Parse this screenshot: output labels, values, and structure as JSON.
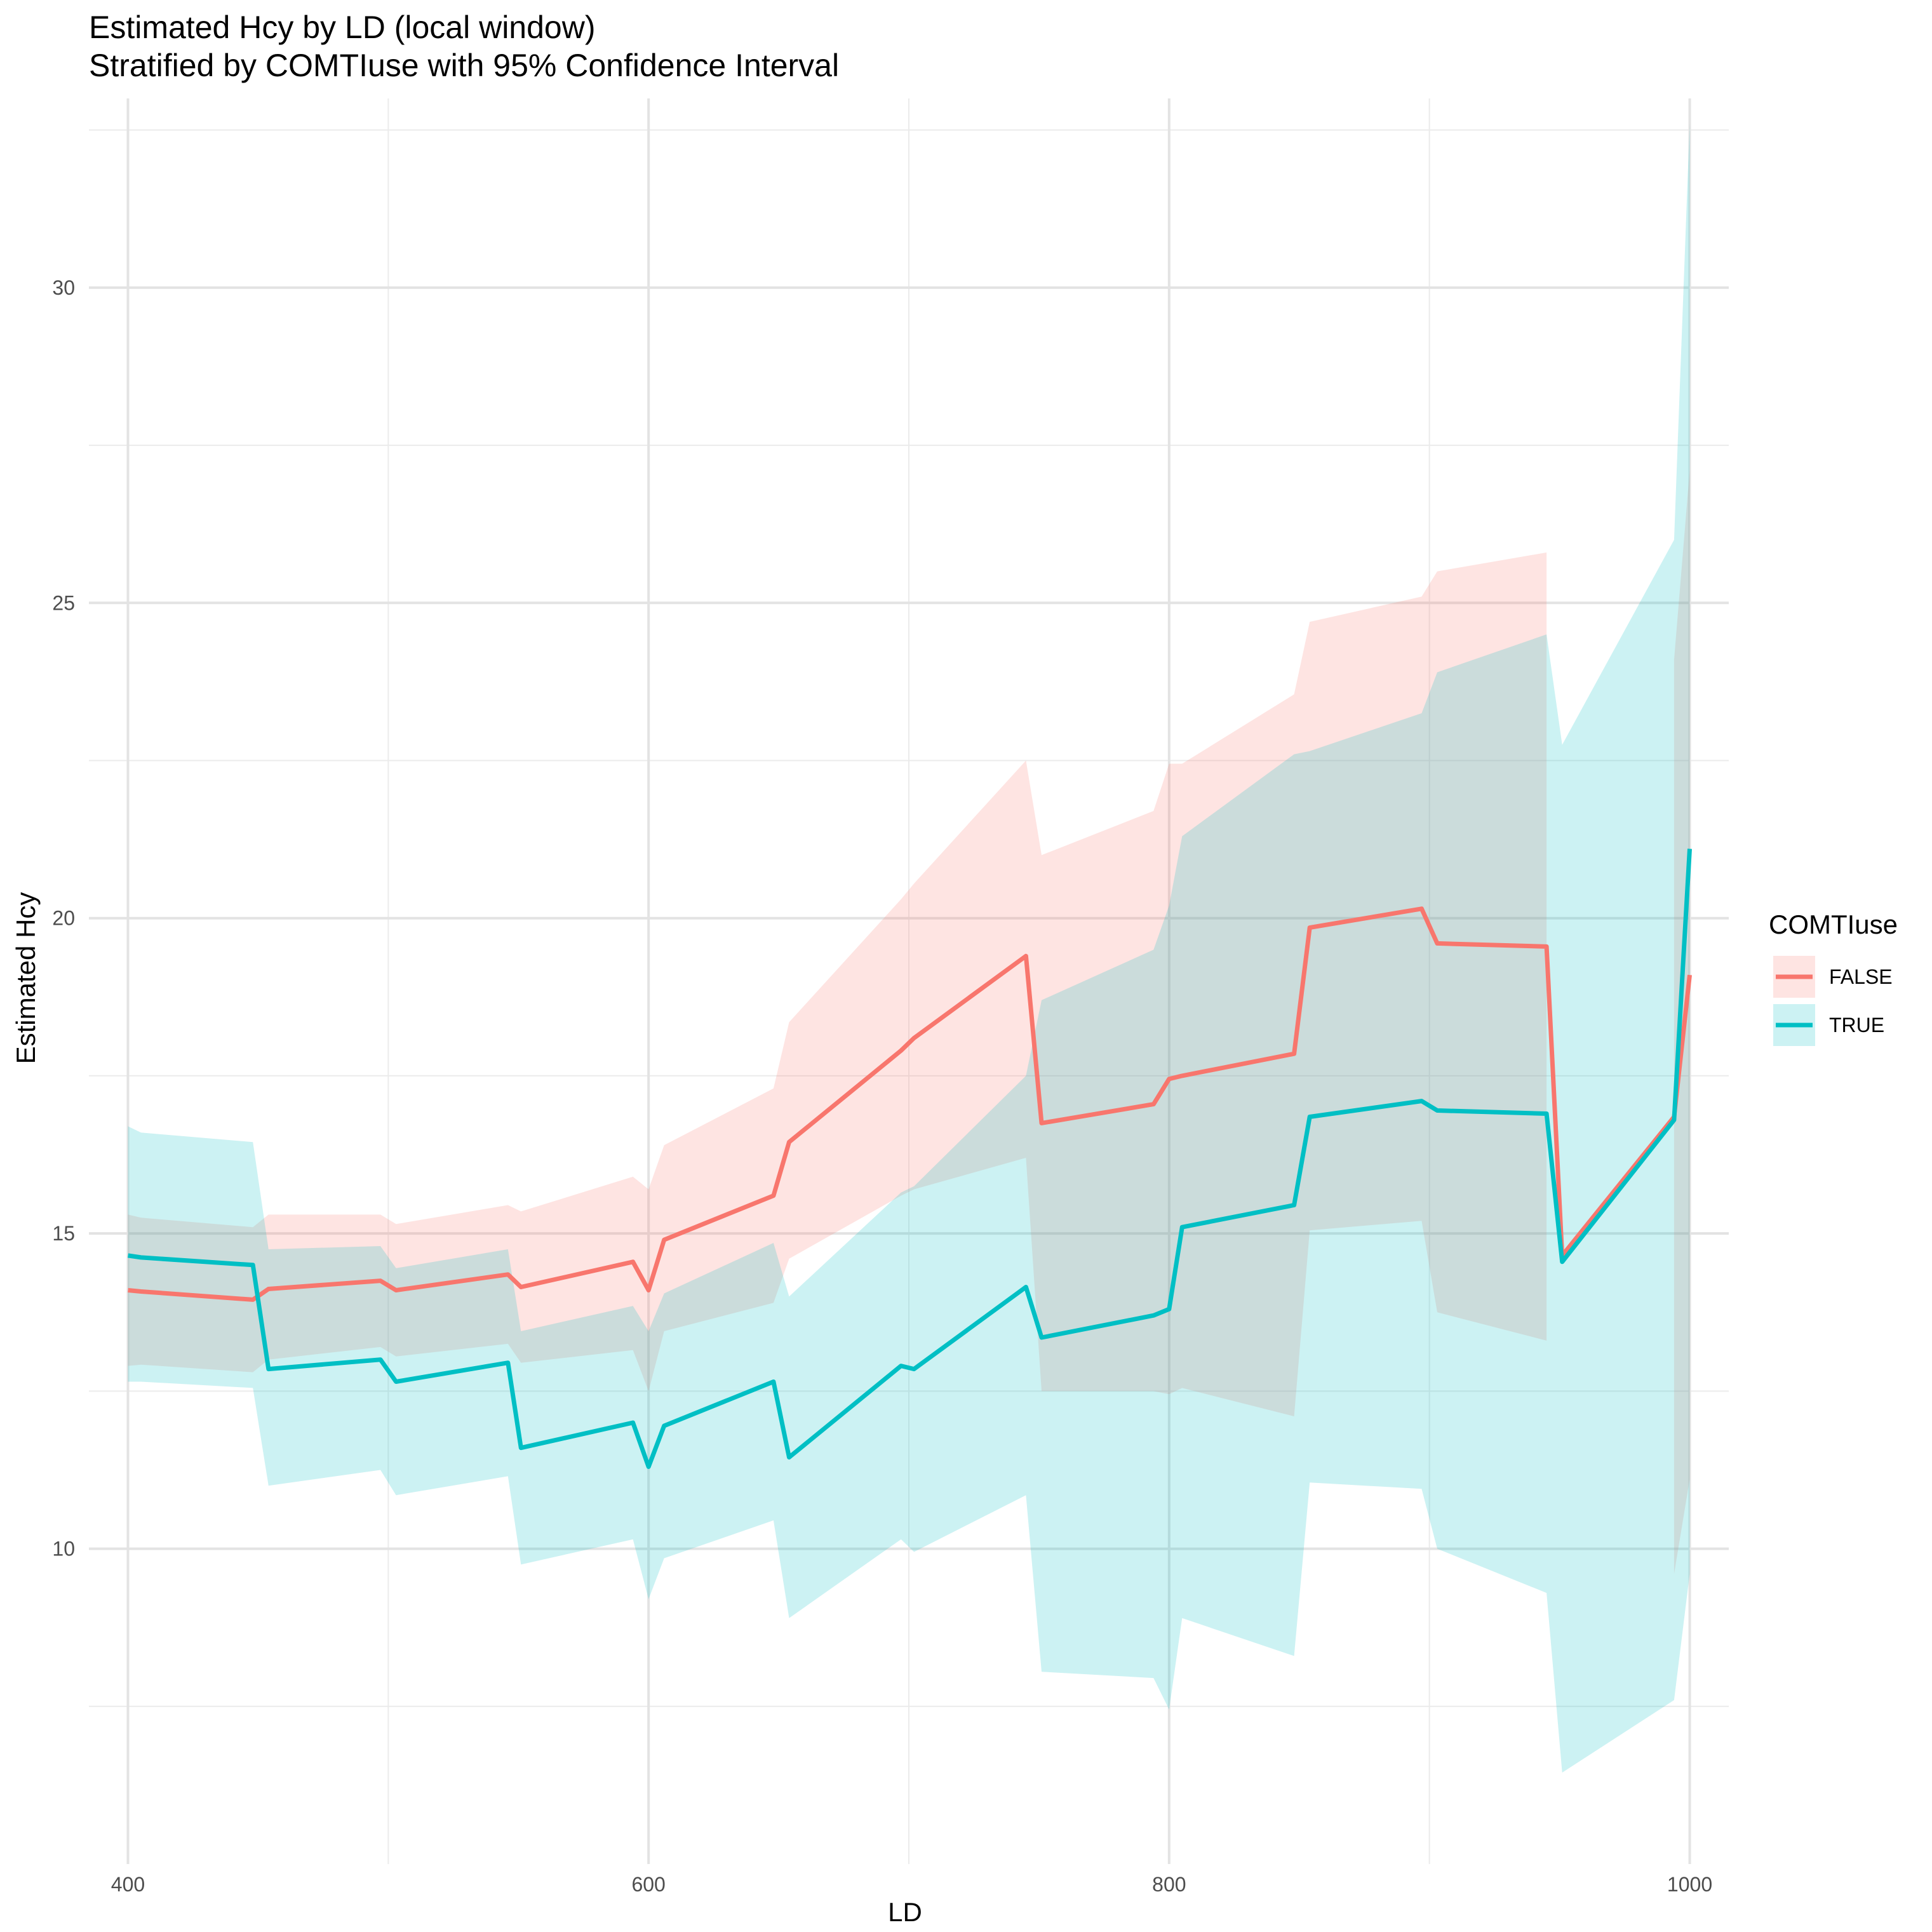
{
  "chart_data": {
    "type": "line",
    "title": "Estimated Hcy by LD (local window)",
    "subtitle": "Stratified by COMTIuse with 95% Confidence Interval",
    "xlabel": "LD",
    "ylabel": "Estimated Hcy",
    "xlim": [
      385,
      1015
    ],
    "ylim": [
      5,
      33
    ],
    "x_ticks": [
      400,
      600,
      800,
      1000
    ],
    "y_ticks": [
      10,
      15,
      20,
      25,
      30
    ],
    "x_minor_ticks": [
      500,
      700,
      900
    ],
    "y_minor_ticks": [
      7.5,
      12.5,
      17.5,
      22.5,
      27.5,
      32.5
    ],
    "grid": true,
    "legend": {
      "title": "COMTIuse",
      "position": "right",
      "entries": [
        "FALSE",
        "TRUE"
      ]
    },
    "series": [
      {
        "name": "FALSE",
        "color": "#F8766D",
        "points": [
          {
            "x": 400,
            "y": 14.1,
            "lo": 12.9,
            "hi": 15.3
          },
          {
            "x": 405,
            "y": 14.08,
            "lo": 12.92,
            "hi": 15.25
          },
          {
            "x": 448,
            "y": 13.95,
            "lo": 12.8,
            "hi": 15.1
          },
          {
            "x": 454,
            "y": 14.12,
            "lo": 13.0,
            "hi": 15.3
          },
          {
            "x": 497,
            "y": 14.25,
            "lo": 13.2,
            "hi": 15.3
          },
          {
            "x": 503,
            "y": 14.1,
            "lo": 13.05,
            "hi": 15.15
          },
          {
            "x": 546,
            "y": 14.35,
            "lo": 13.25,
            "hi": 15.45
          },
          {
            "x": 551,
            "y": 14.15,
            "lo": 12.95,
            "hi": 15.35
          },
          {
            "x": 594,
            "y": 14.55,
            "lo": 13.15,
            "hi": 15.9
          },
          {
            "x": 600,
            "y": 14.1,
            "lo": 12.5,
            "hi": 15.7
          },
          {
            "x": 606,
            "y": 14.9,
            "lo": 13.45,
            "hi": 16.4
          },
          {
            "x": 648,
            "y": 15.6,
            "lo": 13.9,
            "hi": 17.3
          },
          {
            "x": 654,
            "y": 16.45,
            "lo": 14.6,
            "hi": 18.35
          },
          {
            "x": 697,
            "y": 17.9,
            "lo": 15.6,
            "hi": 20.3
          },
          {
            "x": 702,
            "y": 18.1,
            "lo": 15.7,
            "hi": 20.55
          },
          {
            "x": 745,
            "y": 19.4,
            "lo": 16.2,
            "hi": 22.5
          },
          {
            "x": 751,
            "y": 16.75,
            "lo": 12.5,
            "hi": 21.0
          },
          {
            "x": 794,
            "y": 17.05,
            "lo": 12.5,
            "hi": 21.7
          },
          {
            "x": 800,
            "y": 17.45,
            "lo": 12.45,
            "hi": 22.45
          },
          {
            "x": 805,
            "y": 17.5,
            "lo": 12.55,
            "hi": 22.45
          },
          {
            "x": 848,
            "y": 17.85,
            "lo": 12.1,
            "hi": 23.55
          },
          {
            "x": 854,
            "y": 19.85,
            "lo": 15.05,
            "hi": 24.7
          },
          {
            "x": 897,
            "y": 20.15,
            "lo": 15.2,
            "hi": 25.1
          },
          {
            "x": 903,
            "y": 19.6,
            "lo": 13.75,
            "hi": 25.5
          },
          {
            "x": 945,
            "y": 19.55,
            "lo": 13.3,
            "hi": 25.8
          },
          {
            "x": 951,
            "y": 14.65,
            "lo": null,
            "hi": null
          },
          {
            "x": 994,
            "y": 16.85,
            "lo": 9.6,
            "hi": 24.1
          },
          {
            "x": 1000,
            "y": 19.1,
            "lo": 11.1,
            "hi": 27.1
          }
        ]
      },
      {
        "name": "TRUE",
        "color": "#00BFC4",
        "points": [
          {
            "x": 400,
            "y": 14.65,
            "lo": 12.65,
            "hi": 16.7
          },
          {
            "x": 405,
            "y": 14.62,
            "lo": 12.65,
            "hi": 16.6
          },
          {
            "x": 448,
            "y": 14.5,
            "lo": 12.55,
            "hi": 16.45
          },
          {
            "x": 454,
            "y": 12.85,
            "lo": 11.0,
            "hi": 14.75
          },
          {
            "x": 497,
            "y": 13.0,
            "lo": 11.25,
            "hi": 14.8
          },
          {
            "x": 503,
            "y": 12.65,
            "lo": 10.85,
            "hi": 14.45
          },
          {
            "x": 546,
            "y": 12.95,
            "lo": 11.15,
            "hi": 14.75
          },
          {
            "x": 551,
            "y": 11.6,
            "lo": 9.75,
            "hi": 13.45
          },
          {
            "x": 594,
            "y": 12.0,
            "lo": 10.15,
            "hi": 13.85
          },
          {
            "x": 600,
            "y": 11.3,
            "lo": 9.2,
            "hi": 13.45
          },
          {
            "x": 606,
            "y": 11.95,
            "lo": 9.85,
            "hi": 14.05
          },
          {
            "x": 648,
            "y": 12.65,
            "lo": 10.45,
            "hi": 14.85
          },
          {
            "x": 654,
            "y": 11.45,
            "lo": 8.9,
            "hi": 14.0
          },
          {
            "x": 697,
            "y": 12.9,
            "lo": 10.15,
            "hi": 15.65
          },
          {
            "x": 702,
            "y": 12.85,
            "lo": 9.95,
            "hi": 15.75
          },
          {
            "x": 745,
            "y": 14.15,
            "lo": 10.85,
            "hi": 17.5
          },
          {
            "x": 751,
            "y": 13.35,
            "lo": 8.05,
            "hi": 18.7
          },
          {
            "x": 794,
            "y": 13.7,
            "lo": 7.95,
            "hi": 19.5
          },
          {
            "x": 800,
            "y": 13.8,
            "lo": 7.45,
            "hi": 20.2
          },
          {
            "x": 805,
            "y": 15.1,
            "lo": 8.9,
            "hi": 21.3
          },
          {
            "x": 848,
            "y": 15.45,
            "lo": 8.3,
            "hi": 22.6
          },
          {
            "x": 854,
            "y": 16.85,
            "lo": 11.05,
            "hi": 22.65
          },
          {
            "x": 897,
            "y": 17.1,
            "lo": 10.95,
            "hi": 23.25
          },
          {
            "x": 903,
            "y": 16.95,
            "lo": 10.0,
            "hi": 23.9
          },
          {
            "x": 945,
            "y": 16.9,
            "lo": 9.3,
            "hi": 24.5
          },
          {
            "x": 951,
            "y": 14.55,
            "lo": 6.45,
            "hi": 22.75
          },
          {
            "x": 994,
            "y": 16.8,
            "lo": 7.6,
            "hi": 26.0
          },
          {
            "x": 1000,
            "y": 21.1,
            "lo": 9.6,
            "hi": 32.6
          }
        ]
      }
    ]
  }
}
